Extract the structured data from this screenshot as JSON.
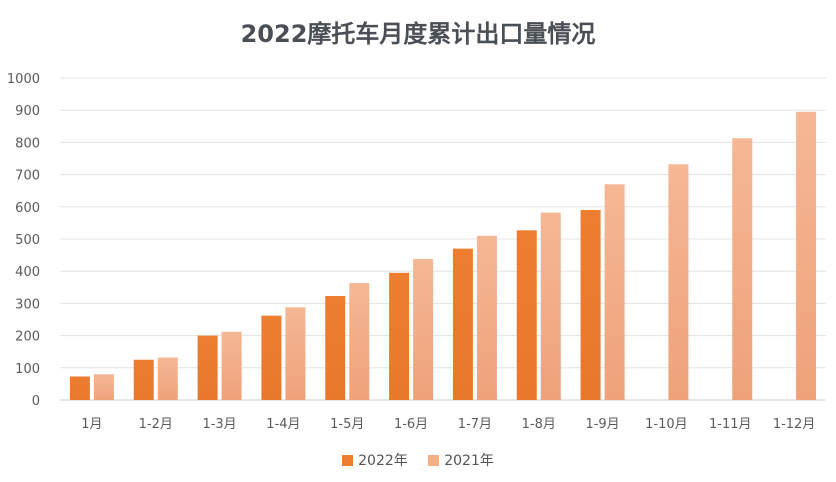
{
  "chart_data": {
    "type": "bar",
    "title": "2022摩托车月度累计出口量情况",
    "xlabel": "",
    "ylabel": "",
    "categories": [
      "1月",
      "1-2月",
      "1-3月",
      "1-4月",
      "1-5月",
      "1-6月",
      "1-7月",
      "1-8月",
      "1-9月",
      "1-10月",
      "1-11月",
      "1-12月"
    ],
    "series": [
      {
        "name": "2022年",
        "color": "#ed7d31",
        "values": [
          73,
          125,
          200,
          262,
          323,
          395,
          470,
          527,
          590,
          null,
          null,
          null
        ]
      },
      {
        "name": "2021年",
        "color": "#f4b183",
        "values": [
          80,
          132,
          212,
          288,
          363,
          438,
          510,
          582,
          670,
          732,
          813,
          895
        ]
      }
    ],
    "ylim": [
      0,
      1000
    ],
    "yticks": [
      0,
      100,
      200,
      300,
      400,
      500,
      600,
      700,
      800,
      900,
      1000
    ],
    "grid": true,
    "legend_position": "bottom"
  }
}
